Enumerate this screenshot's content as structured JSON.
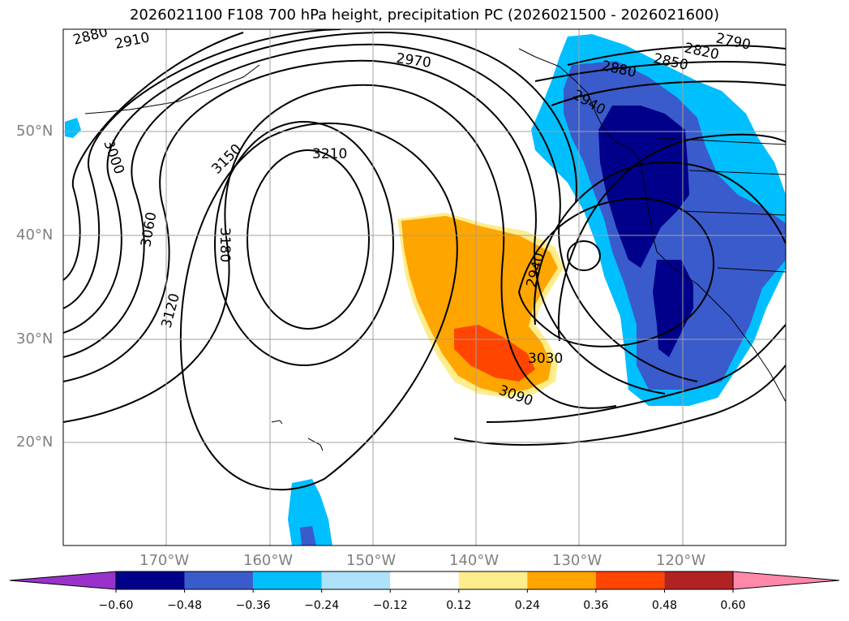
{
  "title": "2026021100 F108 700 hPa height, precipitation PC (2026021500 - 2026021600)",
  "latitude_labels": [
    "50°N",
    "40°N",
    "30°N",
    "20°N"
  ],
  "longitude_labels": [
    "170°W",
    "160°W",
    "150°W",
    "140°W",
    "130°W",
    "120°W"
  ],
  "contour_labels": [
    "2880",
    "2910",
    "2970",
    "2880",
    "2850",
    "2820",
    "2790",
    "2940",
    "3000",
    "3060",
    "3150",
    "3210",
    "3180",
    "3120",
    "2940",
    "3030",
    "3090"
  ],
  "colorbar": {
    "ticks": [
      "−0.60",
      "−0.48",
      "−0.36",
      "−0.24",
      "−0.12",
      "0.12",
      "0.24",
      "0.36",
      "0.48",
      "0.60"
    ],
    "colors": [
      "#9932CC",
      "#00008B",
      "#3A5BCB",
      "#00BFFF",
      "#ADE2FA",
      "#FFFFFF",
      "#FFEC8B",
      "#FFA500",
      "#FF4500",
      "#B22222",
      "#FF88AA"
    ]
  },
  "colors": {
    "strong_negative": "#00008B",
    "medium_negative": "#3A5BCB",
    "light_negative": "#00BFFF",
    "very_light_negative": "#ADE2FA",
    "light_positive": "#FFEC8B",
    "medium_positive": "#FFA500",
    "strong_positive": "#FF4500"
  }
}
